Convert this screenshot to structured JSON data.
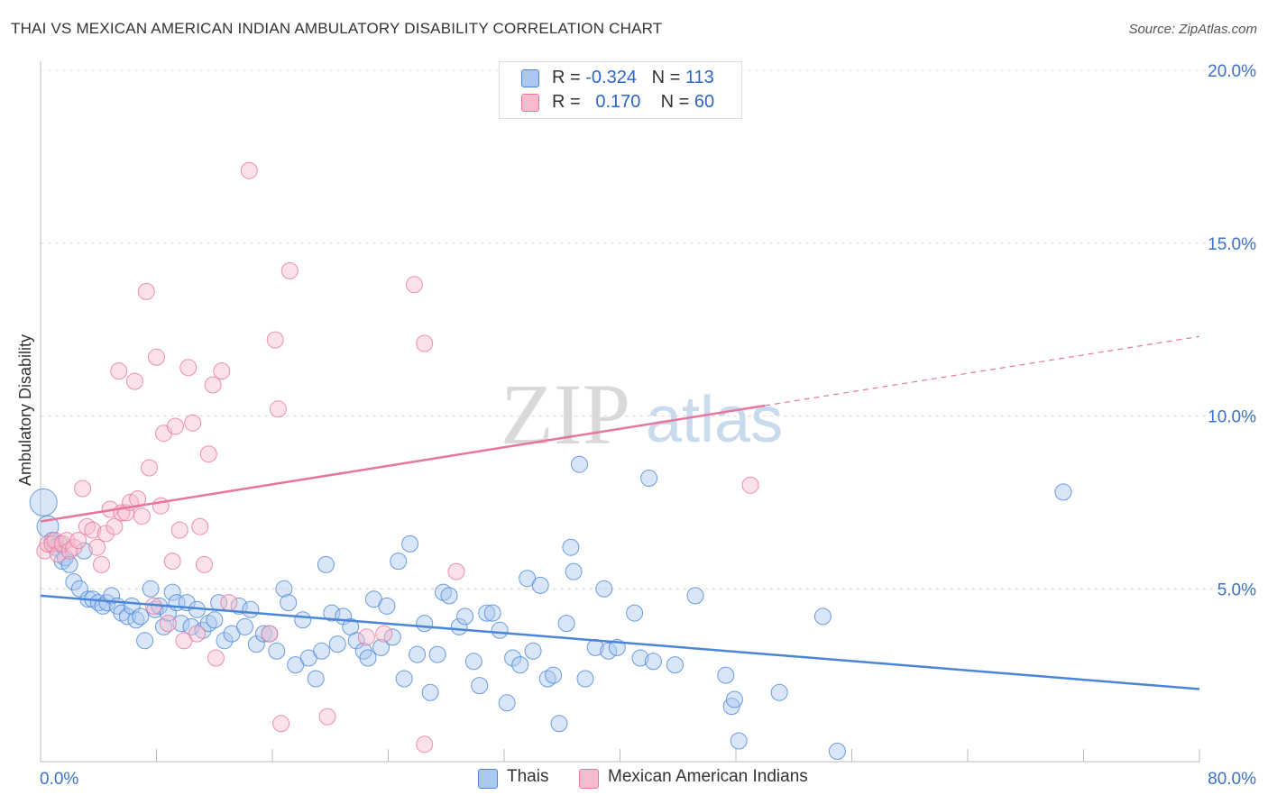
{
  "title": "THAI VS MEXICAN AMERICAN INDIAN AMBULATORY DISABILITY CORRELATION CHART",
  "source": "Source: ZipAtlas.com",
  "watermark": {
    "zip": "ZIP",
    "atlas": "atlas"
  },
  "legend": {
    "r_label": "R =",
    "n_label": "N =",
    "rows": [
      {
        "r": "-0.324",
        "n": "113",
        "color": "#aac8f0"
      },
      {
        "r": "0.170",
        "n": "60",
        "color": "#f6bccd"
      }
    ]
  },
  "bottom_legend": [
    {
      "label": "Thais",
      "color": "#aac8f0"
    },
    {
      "label": "Mexican American Indians",
      "color": "#f6bccd"
    }
  ],
  "chart_data": {
    "type": "scatter",
    "title": "THAI VS MEXICAN AMERICAN INDIAN AMBULATORY DISABILITY CORRELATION CHART",
    "xlabel": "",
    "ylabel": "Ambulatory Disability",
    "xlim": [
      0,
      80
    ],
    "ylim": [
      0,
      20
    ],
    "x_ticks": [
      "0.0%",
      "80.0%"
    ],
    "y_ticks": [
      "5.0%",
      "10.0%",
      "15.0%",
      "20.0%"
    ],
    "y_tick_values": [
      5,
      10,
      15,
      20
    ],
    "grid": true,
    "series": [
      {
        "name": "Thais",
        "color": "#4a86d8",
        "fill": "#aac8f0",
        "r": -0.324,
        "n": 113,
        "trend": {
          "x0": 0,
          "y0": 4.8,
          "x1": 80,
          "y1": 2.1
        },
        "points": [
          [
            0.2,
            7.5
          ],
          [
            0.5,
            6.8
          ],
          [
            0.8,
            6.4
          ],
          [
            1,
            6.2
          ],
          [
            1.3,
            6.3
          ],
          [
            1.5,
            5.8
          ],
          [
            1.7,
            5.9
          ],
          [
            2,
            5.7
          ],
          [
            2.3,
            5.2
          ],
          [
            2.7,
            5.0
          ],
          [
            3,
            6.1
          ],
          [
            3.3,
            4.7
          ],
          [
            3.6,
            4.7
          ],
          [
            4,
            4.6
          ],
          [
            4.3,
            4.5
          ],
          [
            4.6,
            4.6
          ],
          [
            4.9,
            4.8
          ],
          [
            5.3,
            4.5
          ],
          [
            5.6,
            4.3
          ],
          [
            6,
            4.2
          ],
          [
            6.3,
            4.5
          ],
          [
            6.6,
            4.1
          ],
          [
            6.9,
            4.2
          ],
          [
            7.2,
            3.5
          ],
          [
            7.6,
            5.0
          ],
          [
            7.9,
            4.4
          ],
          [
            8.2,
            4.5
          ],
          [
            8.5,
            3.9
          ],
          [
            8.8,
            4.3
          ],
          [
            9.1,
            4.9
          ],
          [
            9.4,
            4.6
          ],
          [
            9.7,
            4.0
          ],
          [
            10.1,
            4.6
          ],
          [
            10.4,
            3.9
          ],
          [
            10.8,
            4.4
          ],
          [
            11.2,
            3.8
          ],
          [
            11.6,
            4.0
          ],
          [
            12,
            4.1
          ],
          [
            12.3,
            4.6
          ],
          [
            12.7,
            3.5
          ],
          [
            13.2,
            3.7
          ],
          [
            13.7,
            4.5
          ],
          [
            14.1,
            3.9
          ],
          [
            14.5,
            4.4
          ],
          [
            14.9,
            3.4
          ],
          [
            15.4,
            3.7
          ],
          [
            15.8,
            3.7
          ],
          [
            16.3,
            3.2
          ],
          [
            16.8,
            5.0
          ],
          [
            17.1,
            4.6
          ],
          [
            17.6,
            2.8
          ],
          [
            18.1,
            4.1
          ],
          [
            18.5,
            3.0
          ],
          [
            19,
            2.4
          ],
          [
            19.4,
            3.2
          ],
          [
            19.7,
            5.7
          ],
          [
            20.1,
            4.3
          ],
          [
            20.5,
            3.4
          ],
          [
            20.9,
            4.2
          ],
          [
            21.4,
            3.9
          ],
          [
            21.8,
            3.5
          ],
          [
            22.3,
            3.2
          ],
          [
            22.6,
            3.0
          ],
          [
            23,
            4.7
          ],
          [
            23.5,
            3.3
          ],
          [
            23.9,
            4.5
          ],
          [
            24.3,
            3.6
          ],
          [
            24.7,
            5.8
          ],
          [
            25.1,
            2.4
          ],
          [
            25.5,
            6.3
          ],
          [
            26,
            3.1
          ],
          [
            26.5,
            4.0
          ],
          [
            26.9,
            2.0
          ],
          [
            27.4,
            3.1
          ],
          [
            27.8,
            4.9
          ],
          [
            28.2,
            4.8
          ],
          [
            28.9,
            3.9
          ],
          [
            29.3,
            4.2
          ],
          [
            29.9,
            2.9
          ],
          [
            30.3,
            2.2
          ],
          [
            30.8,
            4.3
          ],
          [
            31.2,
            4.3
          ],
          [
            31.7,
            3.8
          ],
          [
            32.2,
            1.7
          ],
          [
            32.6,
            3.0
          ],
          [
            33.1,
            2.8
          ],
          [
            33.6,
            5.3
          ],
          [
            34,
            3.2
          ],
          [
            34.5,
            5.1
          ],
          [
            35,
            2.4
          ],
          [
            35.4,
            2.5
          ],
          [
            35.8,
            1.1
          ],
          [
            36.3,
            4.0
          ],
          [
            36.6,
            6.2
          ],
          [
            36.8,
            5.5
          ],
          [
            37.2,
            8.6
          ],
          [
            37.6,
            2.4
          ],
          [
            38.3,
            3.3
          ],
          [
            38.9,
            5.0
          ],
          [
            39.2,
            3.2
          ],
          [
            39.8,
            3.3
          ],
          [
            41,
            4.3
          ],
          [
            41.4,
            3.0
          ],
          [
            42,
            8.2
          ],
          [
            42.3,
            2.9
          ],
          [
            43.8,
            2.8
          ],
          [
            45.2,
            4.8
          ],
          [
            47.3,
            2.5
          ],
          [
            47.7,
            1.6
          ],
          [
            47.9,
            1.8
          ],
          [
            48.2,
            0.6
          ],
          [
            51,
            2.0
          ],
          [
            54,
            4.2
          ],
          [
            55,
            0.3
          ],
          [
            70.6,
            7.8
          ]
        ]
      },
      {
        "name": "Mexican American Indians",
        "color": "#e8759c",
        "fill": "#f6bccd",
        "r": 0.17,
        "n": 60,
        "trend": {
          "x0": 0,
          "y0": 6.95,
          "x1": 50,
          "y1": 10.3,
          "dashed_to": {
            "x": 80,
            "y": 12.3
          }
        },
        "points": [
          [
            0.3,
            6.1
          ],
          [
            0.5,
            6.3
          ],
          [
            0.8,
            6.3
          ],
          [
            1,
            6.4
          ],
          [
            1.2,
            6.0
          ],
          [
            1.5,
            6.3
          ],
          [
            1.8,
            6.4
          ],
          [
            2,
            6.1
          ],
          [
            2.3,
            6.2
          ],
          [
            2.6,
            6.4
          ],
          [
            2.9,
            7.9
          ],
          [
            3.2,
            6.8
          ],
          [
            3.6,
            6.7
          ],
          [
            3.9,
            6.2
          ],
          [
            4.2,
            5.7
          ],
          [
            4.5,
            6.6
          ],
          [
            4.8,
            7.3
          ],
          [
            5.1,
            6.8
          ],
          [
            5.4,
            11.3
          ],
          [
            5.6,
            7.2
          ],
          [
            5.9,
            7.2
          ],
          [
            6.2,
            7.5
          ],
          [
            6.5,
            11.0
          ],
          [
            6.7,
            7.6
          ],
          [
            7,
            7.1
          ],
          [
            7.3,
            13.6
          ],
          [
            7.5,
            8.5
          ],
          [
            7.8,
            4.5
          ],
          [
            8,
            11.7
          ],
          [
            8.3,
            7.4
          ],
          [
            8.5,
            9.5
          ],
          [
            8.8,
            4.0
          ],
          [
            9.1,
            5.8
          ],
          [
            9.3,
            9.7
          ],
          [
            9.6,
            6.7
          ],
          [
            9.9,
            3.5
          ],
          [
            10.2,
            11.4
          ],
          [
            10.5,
            9.8
          ],
          [
            10.8,
            3.7
          ],
          [
            11,
            6.8
          ],
          [
            11.3,
            5.7
          ],
          [
            11.6,
            8.9
          ],
          [
            11.9,
            10.9
          ],
          [
            12.1,
            3.0
          ],
          [
            12.5,
            11.3
          ],
          [
            13,
            4.6
          ],
          [
            14.4,
            17.1
          ],
          [
            15.8,
            3.7
          ],
          [
            16.2,
            12.2
          ],
          [
            16.4,
            10.2
          ],
          [
            16.6,
            1.1
          ],
          [
            17.2,
            14.2
          ],
          [
            19.8,
            1.3
          ],
          [
            22.5,
            3.6
          ],
          [
            23.7,
            3.7
          ],
          [
            25.8,
            13.8
          ],
          [
            26.5,
            12.1
          ],
          [
            26.5,
            0.5
          ],
          [
            28.7,
            5.5
          ],
          [
            49,
            8.0
          ]
        ]
      }
    ]
  }
}
